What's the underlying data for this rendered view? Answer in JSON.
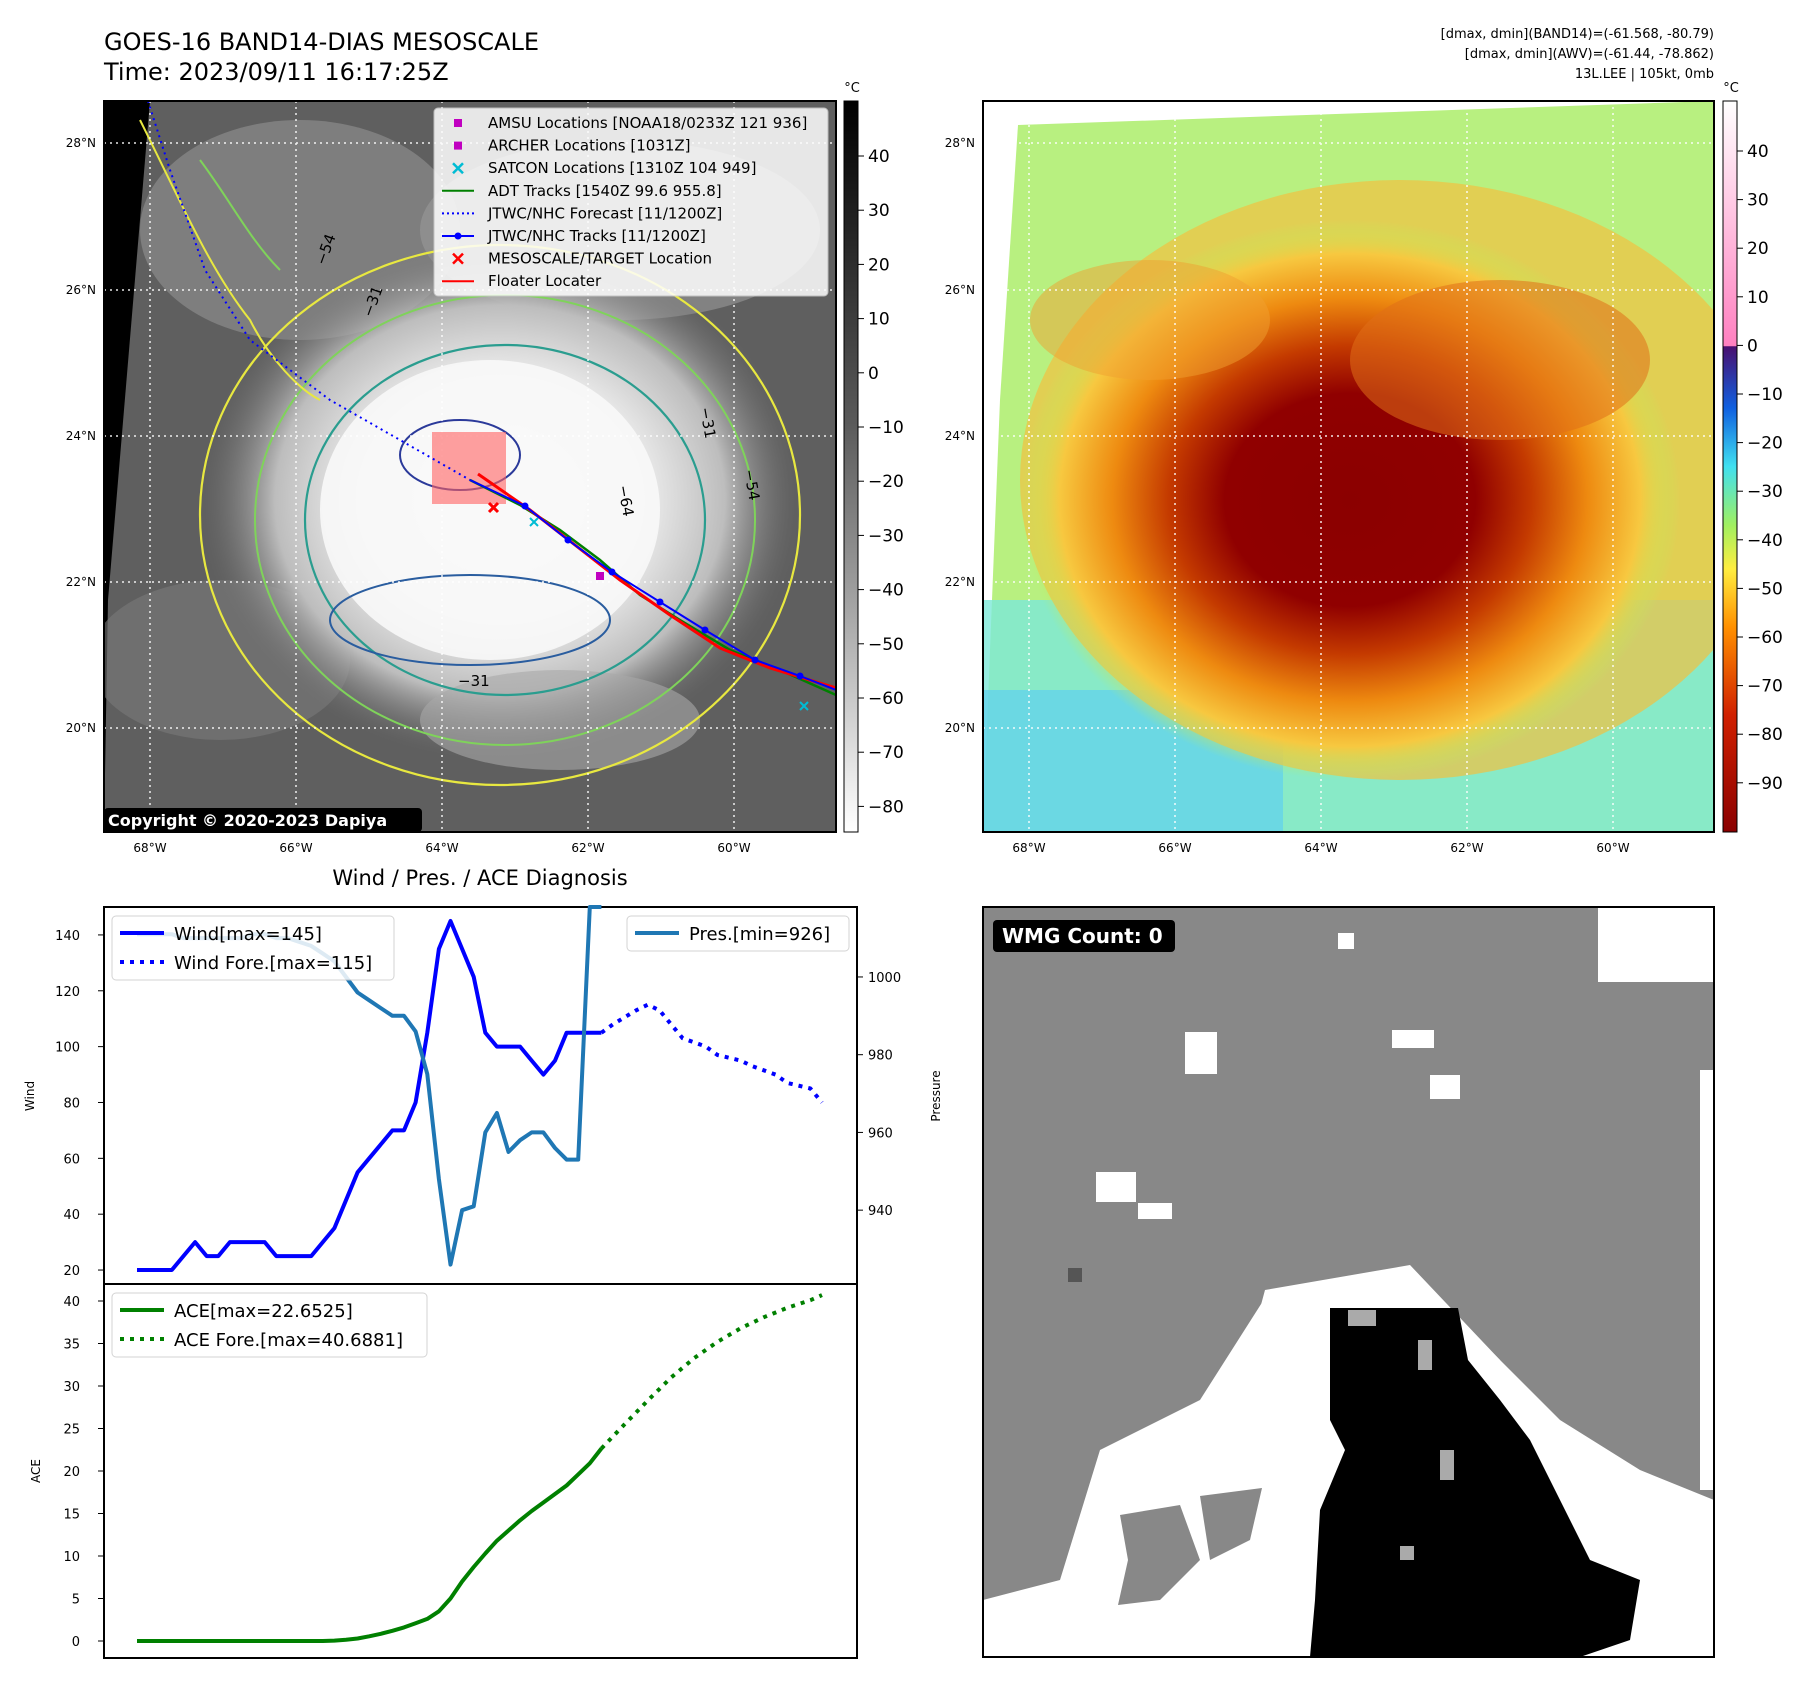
{
  "header": {
    "title_line1": "GOES-16 BAND14-DIAS MESOSCALE",
    "title_line2": "Time: 2023/09/11 16:17:25Z",
    "info_line1": "[dmax, dmin](BAND14)=(-61.568, -80.79)",
    "info_line2": "[dmax, dmin](AWV)=(-61.44, -78.862)",
    "info_line3": "13L.LEE | 105kt, 0mb"
  },
  "map_ir": {
    "colorbar_unit": "°C",
    "colorbar_ticks": [
      "40",
      "30",
      "20",
      "10",
      "0",
      "−10",
      "−20",
      "−30",
      "−40",
      "−50",
      "−60",
      "−70",
      "−80"
    ],
    "lat_labels": [
      "28°N",
      "26°N",
      "24°N",
      "22°N",
      "20°N"
    ],
    "lon_labels": [
      "68°W",
      "66°W",
      "64°W",
      "62°W",
      "60°W"
    ],
    "contour_labels": [
      "−54",
      "−31",
      "−64",
      "−54",
      "−31",
      "−31"
    ],
    "legend": [
      {
        "label": "AMSU Locations [NOAA18/0233Z 121 936]",
        "marker": "square",
        "color": "#c000c0"
      },
      {
        "label": "ARCHER Locations [1031Z]",
        "marker": "square",
        "color": "#c000c0"
      },
      {
        "label": "SATCON Locations [1310Z 104 949]",
        "marker": "x",
        "color": "#00bcd4"
      },
      {
        "label": "ADT Tracks [1540Z 99.6 955.8]",
        "marker": "line",
        "color": "#008000"
      },
      {
        "label": "JTWC/NHC Forecast [11/1200Z]",
        "marker": "dotted",
        "color": "#0000ff"
      },
      {
        "label": "JTWC/NHC Tracks [11/1200Z]",
        "marker": "line-dot",
        "color": "#0000ff"
      },
      {
        "label": "MESOSCALE/TARGET Location",
        "marker": "x",
        "color": "#ff0000"
      },
      {
        "label": "Floater Locater",
        "marker": "line",
        "color": "#ff0000"
      }
    ],
    "copyright": "Copyright © 2020-2023 Dapiya"
  },
  "map_awv": {
    "colorbar_unit": "°C",
    "colorbar_ticks": [
      "40",
      "30",
      "20",
      "10",
      "0",
      "−10",
      "−20",
      "−30",
      "−40",
      "−50",
      "−60",
      "−70",
      "−80",
      "−90"
    ],
    "lat_labels": [
      "28°N",
      "26°N",
      "24°N",
      "22°N",
      "20°N"
    ],
    "lon_labels": [
      "68°W",
      "66°W",
      "64°W",
      "62°W",
      "60°W"
    ]
  },
  "wmg": {
    "label": "WMG Count: 0"
  },
  "diagnosis_title": "Wind / Pres. / ACE Diagnosis",
  "chart_data": [
    {
      "type": "line",
      "title": "Wind / Pres. / ACE Diagnosis",
      "ylabel": "Wind",
      "ylim": [
        15,
        150
      ],
      "yticks": [
        20,
        40,
        60,
        80,
        100,
        120,
        140
      ],
      "y2label": "Pressure",
      "y2lim": [
        921,
        1018
      ],
      "y2ticks": [
        940,
        960,
        980,
        1000
      ],
      "series": [
        {
          "name": "Wind[max=145]",
          "style": "solid",
          "color": "#0000ff",
          "axis": "left",
          "x": [
            0,
            1,
            2,
            3,
            4,
            5,
            6,
            7,
            8,
            9,
            10,
            11,
            12,
            13,
            14,
            15,
            16,
            17,
            18,
            19,
            20,
            21,
            22,
            23,
            24,
            25,
            26,
            27,
            28,
            29,
            30,
            31,
            32,
            33,
            34,
            35,
            36,
            37,
            38,
            39,
            40
          ],
          "values": [
            20,
            20,
            20,
            20,
            25,
            30,
            25,
            25,
            30,
            30,
            30,
            30,
            25,
            25,
            25,
            25,
            30,
            35,
            45,
            55,
            60,
            65,
            70,
            70,
            80,
            105,
            135,
            145,
            135,
            125,
            105,
            100,
            100,
            100,
            95,
            90,
            95,
            105,
            105,
            105,
            105
          ]
        },
        {
          "name": "Wind Fore.[max=115]",
          "style": "dotted",
          "color": "#0000ff",
          "axis": "left",
          "x": [
            40,
            41,
            43,
            44,
            45,
            46,
            47,
            49,
            50,
            52,
            53,
            55,
            56,
            58,
            59
          ],
          "values": [
            105,
            108,
            113,
            115,
            113,
            108,
            103,
            100,
            97,
            95,
            93,
            90,
            87,
            85,
            80
          ]
        },
        {
          "name": "Pres.[min=926]",
          "style": "solid",
          "color": "#1f77b4",
          "axis": "right",
          "x": [
            0,
            1,
            2,
            3,
            4,
            5,
            6,
            7,
            8,
            9,
            10,
            11,
            12,
            13,
            14,
            15,
            16,
            17,
            18,
            19,
            20,
            21,
            22,
            23,
            24,
            25,
            26,
            27,
            28,
            29,
            30,
            31,
            32,
            33,
            34,
            35,
            36,
            37,
            38,
            39,
            40
          ],
          "values": [
            1011,
            1011,
            1011,
            1011,
            1010,
            1010,
            1010,
            1010,
            1010,
            1010,
            1011,
            1011,
            1010,
            1010,
            1009,
            1008,
            1006,
            1004,
            1000,
            996,
            994,
            992,
            990,
            990,
            986,
            975,
            948,
            926,
            940,
            941,
            960,
            965,
            955,
            958,
            960,
            960,
            956,
            953,
            953,
            1018,
            1018
          ]
        }
      ]
    },
    {
      "type": "line",
      "ylabel": "ACE",
      "ylim": [
        -2,
        42
      ],
      "yticks": [
        0,
        5,
        10,
        15,
        20,
        25,
        30,
        35,
        40
      ],
      "series": [
        {
          "name": "ACE[max=22.6525]",
          "style": "solid",
          "color": "#008000",
          "x": [
            0,
            4,
            8,
            12,
            16,
            17,
            18,
            19,
            20,
            21,
            22,
            23,
            24,
            25,
            26,
            27,
            28,
            29,
            30,
            31,
            32,
            33,
            34,
            35,
            36,
            37,
            38,
            39,
            40
          ],
          "values": [
            0,
            0,
            0,
            0,
            0,
            0.05,
            0.15,
            0.3,
            0.55,
            0.85,
            1.2,
            1.6,
            2.1,
            2.6,
            3.5,
            5,
            7,
            8.7,
            10.3,
            11.8,
            13,
            14.2,
            15.3,
            16.3,
            17.3,
            18.3,
            19.6,
            20.9,
            22.65
          ]
        },
        {
          "name": "ACE Fore.[max=40.6881]",
          "style": "dotted",
          "color": "#008000",
          "x": [
            40,
            42,
            44,
            46,
            48,
            50,
            52,
            54,
            56,
            58,
            59
          ],
          "values": [
            22.65,
            25.5,
            28.3,
            31,
            33.3,
            35.2,
            36.8,
            38.1,
            39.2,
            40.1,
            40.69
          ]
        }
      ]
    }
  ]
}
